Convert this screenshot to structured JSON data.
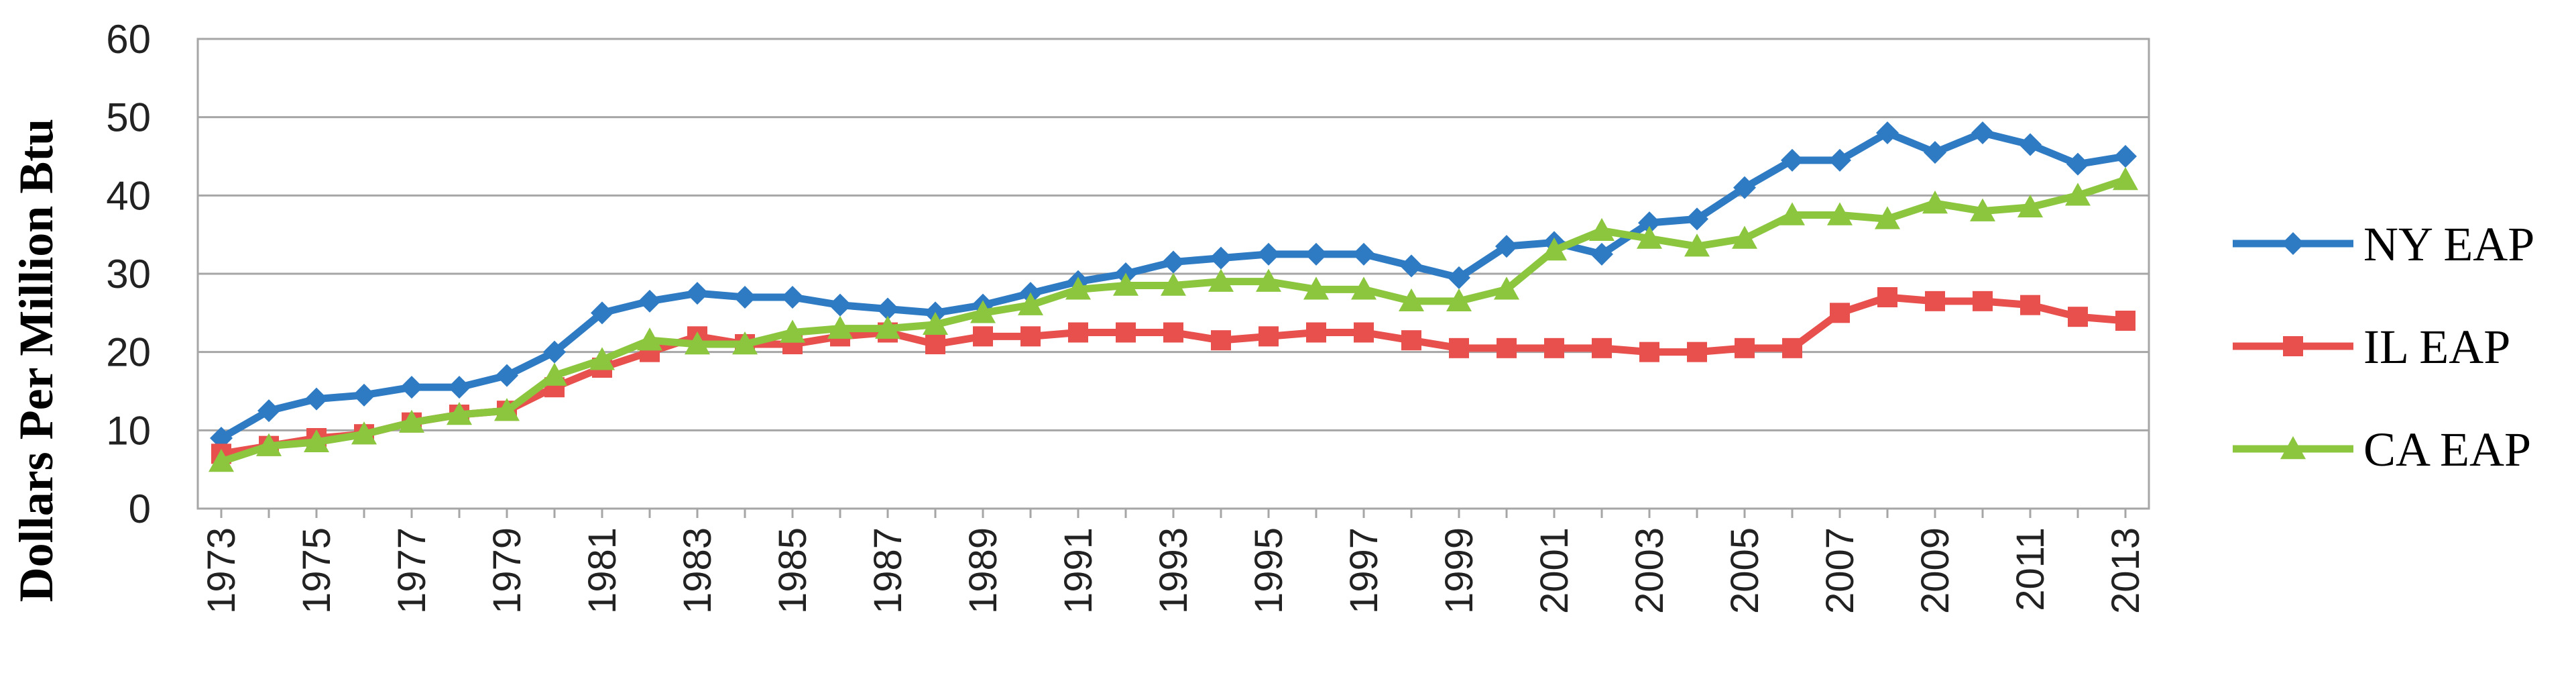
{
  "chart_data": {
    "type": "line",
    "title": "",
    "xlabel": "",
    "ylabel": "Dollars Per Million Btu",
    "ylim": [
      0,
      60
    ],
    "y_ticks": [
      0,
      10,
      20,
      30,
      40,
      50,
      60
    ],
    "grid": true,
    "legend_position": "right",
    "x": [
      1973,
      1974,
      1975,
      1976,
      1977,
      1978,
      1979,
      1980,
      1981,
      1982,
      1983,
      1984,
      1985,
      1986,
      1987,
      1988,
      1989,
      1990,
      1991,
      1992,
      1993,
      1994,
      1995,
      1996,
      1997,
      1998,
      1999,
      2000,
      2001,
      2002,
      2003,
      2004,
      2005,
      2006,
      2007,
      2008,
      2009,
      2010,
      2011,
      2012,
      2013
    ],
    "x_tick_labels": [
      "1973",
      "1975",
      "1977",
      "1979",
      "1981",
      "1983",
      "1985",
      "1987",
      "1989",
      "1991",
      "1993",
      "1995",
      "1997",
      "1999",
      "2001",
      "2003",
      "2005",
      "2007",
      "2009",
      "2011",
      "2013"
    ],
    "series": [
      {
        "name": "NY EAP",
        "color": "#2E7BC4",
        "marker": "diamond",
        "values": [
          9,
          12.5,
          14,
          14.5,
          15.5,
          15.5,
          17,
          20,
          25,
          26.5,
          27.5,
          27,
          27,
          26,
          25.5,
          25,
          26,
          27.5,
          29,
          30,
          31.5,
          32,
          32.5,
          32.5,
          32.5,
          31,
          29.5,
          33.5,
          34,
          32.5,
          36.5,
          37,
          41,
          44.5,
          44.5,
          48,
          45.5,
          48,
          46.5,
          44,
          45
        ]
      },
      {
        "name": "IL EAP",
        "color": "#E8504D",
        "marker": "square",
        "values": [
          7,
          8,
          9,
          9.5,
          11,
          12,
          12.5,
          15.5,
          18,
          20,
          22,
          21,
          21,
          22,
          22.5,
          21,
          22,
          22,
          22.5,
          22.5,
          22.5,
          21.5,
          22,
          22.5,
          22.5,
          21.5,
          20.5,
          20.5,
          20.5,
          20.5,
          20,
          20,
          20.5,
          20.5,
          25,
          27,
          26.5,
          26.5,
          26,
          24.5,
          24
        ]
      },
      {
        "name": "CA EAP",
        "color": "#8CC63F",
        "marker": "triangle",
        "values": [
          6,
          8,
          8.5,
          9.5,
          11,
          12,
          12.5,
          17,
          19,
          21.5,
          21,
          21,
          22.5,
          23,
          23,
          23.5,
          25,
          26,
          28,
          28.5,
          28.5,
          29,
          29,
          28,
          28,
          26.5,
          26.5,
          28,
          33,
          35.5,
          34.5,
          33.5,
          34.5,
          37.5,
          37.5,
          37,
          39,
          38,
          38.5,
          40,
          42
        ]
      }
    ]
  }
}
